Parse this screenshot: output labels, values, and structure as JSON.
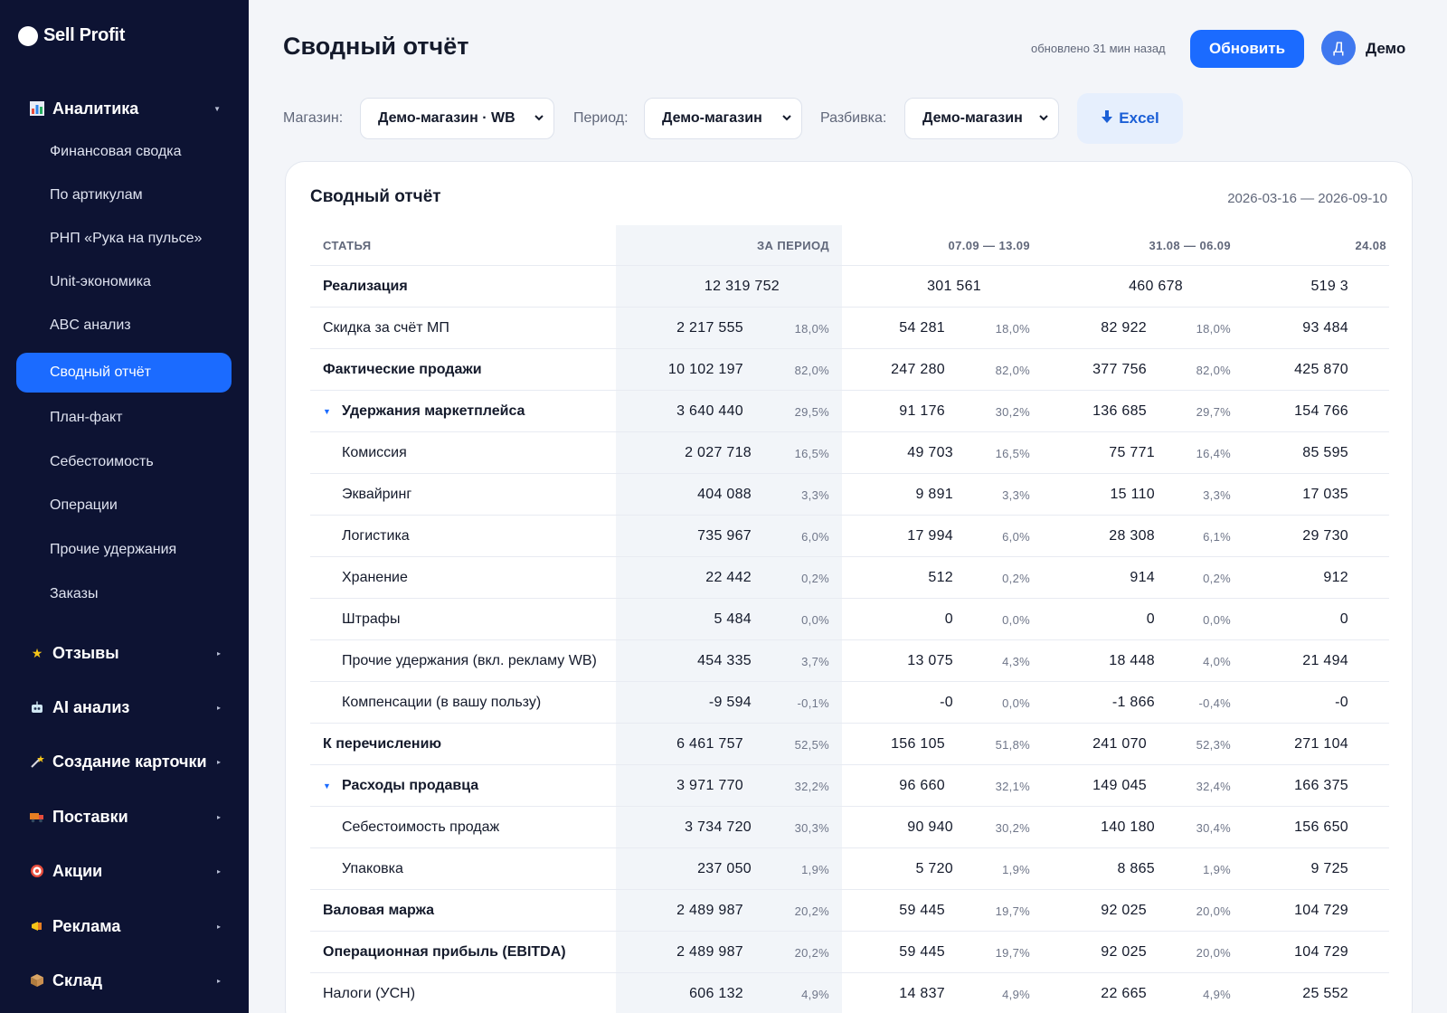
{
  "app": {
    "logo": "Sell Profit"
  },
  "sidebar": {
    "analytics": {
      "label": "Аналитика",
      "icon": "bar-chart-icon"
    },
    "items": [
      "Финансовая сводка",
      "По артикулам",
      "РНП «Рука на пульсе»",
      "Unit-экономика",
      "ABC анализ",
      "Сводный отчёт",
      "План-факт",
      "Себестоимость",
      "Операции",
      "Прочие удержания",
      "Заказы"
    ],
    "active_item": "Сводный отчёт",
    "groups": [
      {
        "label": "Отзывы",
        "icon": "star-icon"
      },
      {
        "label": "AI анализ",
        "icon": "robot-icon"
      },
      {
        "label": "Создание карточки",
        "icon": "magic-wand-icon"
      },
      {
        "label": "Поставки",
        "icon": "truck-icon"
      },
      {
        "label": "Акции",
        "icon": "target-icon"
      },
      {
        "label": "Реклама",
        "icon": "megaphone-icon"
      },
      {
        "label": "Склад",
        "icon": "box-icon"
      }
    ]
  },
  "header": {
    "title": "Сводный отчёт",
    "updated": "обновлено 31 мин назад",
    "refresh": "Обновить",
    "avatar_letter": "Д",
    "user": "Демо"
  },
  "filters": {
    "store_label": "Магазин:",
    "store_value": "Демо-магазин · WB",
    "period_label": "Период:",
    "period_value": "Демо-магазин",
    "split_label": "Разбивка:",
    "split_value": "Демо-магазин",
    "excel": "Excel"
  },
  "report": {
    "title": "Сводный отчёт",
    "range": "2026-03-16 — 2026-09-10",
    "columns": [
      "СТАТЬЯ",
      "ЗА ПЕРИОД",
      "07.09 — 13.09",
      "31.08 — 06.09",
      "24.08"
    ],
    "rows": [
      {
        "label": "Реализация",
        "style": "bold",
        "values": [
          "12 319 752",
          "",
          "301 561",
          "",
          "460 678",
          "",
          "519 3",
          ""
        ]
      },
      {
        "label": "Скидка за счёт МП",
        "style": "normal",
        "values": [
          "2 217 555",
          "18,0%",
          "54 281",
          "18,0%",
          "82 922",
          "18,0%",
          "93 484",
          ""
        ]
      },
      {
        "label": "Фактические продажи",
        "style": "bold",
        "values": [
          "10 102 197",
          "82,0%",
          "247 280",
          "82,0%",
          "377 756",
          "82,0%",
          "425 870",
          ""
        ]
      },
      {
        "label": "Удержания маркетплейса",
        "style": "group",
        "values": [
          "3 640 440",
          "29,5%",
          "91 176",
          "30,2%",
          "136 685",
          "29,7%",
          "154 766",
          ""
        ]
      },
      {
        "label": "Комиссия",
        "style": "sub",
        "values": [
          "2 027 718",
          "16,5%",
          "49 703",
          "16,5%",
          "75 771",
          "16,4%",
          "85 595",
          ""
        ]
      },
      {
        "label": "Эквайринг",
        "style": "sub",
        "values": [
          "404 088",
          "3,3%",
          "9 891",
          "3,3%",
          "15 110",
          "3,3%",
          "17 035",
          ""
        ]
      },
      {
        "label": "Логистика",
        "style": "sub",
        "values": [
          "735 967",
          "6,0%",
          "17 994",
          "6,0%",
          "28 308",
          "6,1%",
          "29 730",
          ""
        ]
      },
      {
        "label": "Хранение",
        "style": "sub",
        "values": [
          "22 442",
          "0,2%",
          "512",
          "0,2%",
          "914",
          "0,2%",
          "912",
          ""
        ]
      },
      {
        "label": "Штрафы",
        "style": "sub",
        "values": [
          "5 484",
          "0,0%",
          "0",
          "0,0%",
          "0",
          "0,0%",
          "0",
          ""
        ]
      },
      {
        "label": "Прочие удержания (вкл. рекламу WB)",
        "style": "sub",
        "values": [
          "454 335",
          "3,7%",
          "13 075",
          "4,3%",
          "18 448",
          "4,0%",
          "21 494",
          ""
        ]
      },
      {
        "label": "Компенсации (в вашу пользу)",
        "style": "sub",
        "values": [
          "-9 594",
          "-0,1%",
          "-0",
          "0,0%",
          "-1 866",
          "-0,4%",
          "-0",
          ""
        ]
      },
      {
        "label": "К перечислению",
        "style": "bold",
        "values": [
          "6 461 757",
          "52,5%",
          "156 105",
          "51,8%",
          "241 070",
          "52,3%",
          "271 104",
          ""
        ]
      },
      {
        "label": "Расходы продавца",
        "style": "group",
        "values": [
          "3 971 770",
          "32,2%",
          "96 660",
          "32,1%",
          "149 045",
          "32,4%",
          "166 375",
          ""
        ]
      },
      {
        "label": "Себестоимость продаж",
        "style": "sub",
        "values": [
          "3 734 720",
          "30,3%",
          "90 940",
          "30,2%",
          "140 180",
          "30,4%",
          "156 650",
          ""
        ]
      },
      {
        "label": "Упаковка",
        "style": "sub",
        "values": [
          "237 050",
          "1,9%",
          "5 720",
          "1,9%",
          "8 865",
          "1,9%",
          "9 725",
          ""
        ]
      },
      {
        "label": "Валовая маржа",
        "style": "bold",
        "values": [
          "2 489 987",
          "20,2%",
          "59 445",
          "19,7%",
          "92 025",
          "20,0%",
          "104 729",
          ""
        ]
      },
      {
        "label": "Операционная прибыль (EBITDA)",
        "style": "bold",
        "values": [
          "2 489 987",
          "20,2%",
          "59 445",
          "19,7%",
          "92 025",
          "20,0%",
          "104 729",
          ""
        ]
      },
      {
        "label": "Налоги (УСН)",
        "style": "normal",
        "values": [
          "606 132",
          "4,9%",
          "14 837",
          "4,9%",
          "22 665",
          "4,9%",
          "25 552",
          ""
        ]
      }
    ]
  },
  "colors": {
    "accent": "#1b6bff",
    "sidebar_bg": "#0d1333",
    "period_column_bg": "#f2f5f9"
  }
}
